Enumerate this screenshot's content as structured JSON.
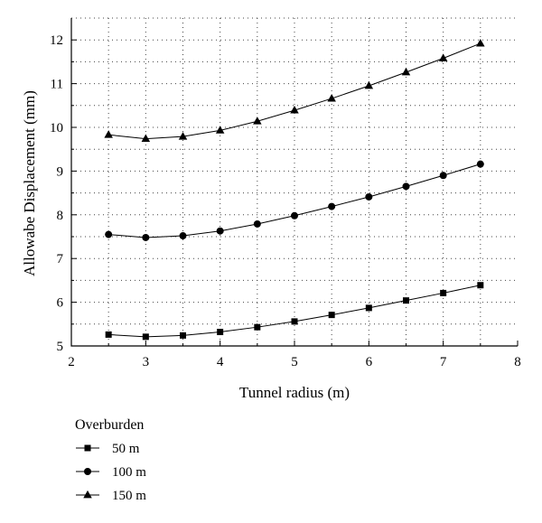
{
  "chart_data": {
    "type": "line",
    "xlabel": "Tunnel radius (m)",
    "ylabel": "Allowabe Displacement (mm)",
    "xlim": [
      2,
      8
    ],
    "ylim": [
      5,
      12.5
    ],
    "xticks": [
      2,
      3,
      4,
      5,
      6,
      7,
      8
    ],
    "yticks": [
      5,
      6,
      7,
      8,
      9,
      10,
      11,
      12
    ],
    "grid": true,
    "x": [
      2.5,
      3.0,
      3.5,
      4.0,
      4.5,
      5.0,
      5.5,
      6.0,
      6.5,
      7.0,
      7.5
    ],
    "legend_title": "Overburden",
    "legend_position": "below",
    "series": [
      {
        "name": "50 m",
        "marker": "square",
        "values": [
          5.26,
          5.21,
          5.24,
          5.32,
          5.43,
          5.56,
          5.71,
          5.87,
          6.04,
          6.21,
          6.39
        ]
      },
      {
        "name": "100 m",
        "marker": "circle",
        "values": [
          7.55,
          7.48,
          7.52,
          7.63,
          7.79,
          7.98,
          8.19,
          8.41,
          8.65,
          8.9,
          9.16
        ]
      },
      {
        "name": "150 m",
        "marker": "triangle",
        "values": [
          9.83,
          9.74,
          9.79,
          9.93,
          10.14,
          10.39,
          10.66,
          10.95,
          11.26,
          11.58,
          11.92
        ]
      }
    ]
  }
}
